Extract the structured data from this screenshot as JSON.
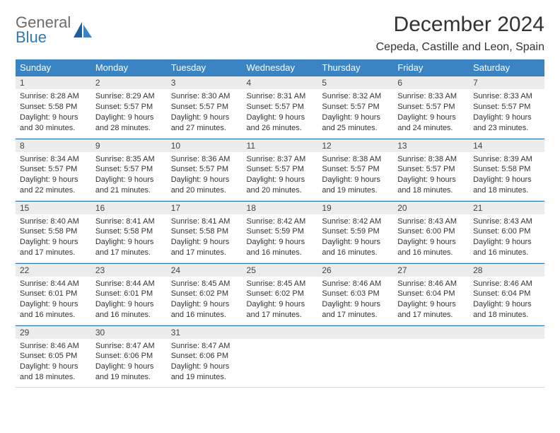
{
  "brand": {
    "part1": "General",
    "part2": "Blue"
  },
  "title": "December 2024",
  "location": "Cepeda, Castille and Leon, Spain",
  "colors": {
    "header_bg": "#3a84c4",
    "daynum_bg": "#ececec",
    "accent": "#2f79b9",
    "text": "#333333"
  },
  "weekdays": [
    "Sunday",
    "Monday",
    "Tuesday",
    "Wednesday",
    "Thursday",
    "Friday",
    "Saturday"
  ],
  "days": [
    {
      "n": 1,
      "sr": "8:28 AM",
      "ss": "5:58 PM",
      "dl": "9 hours and 30 minutes."
    },
    {
      "n": 2,
      "sr": "8:29 AM",
      "ss": "5:57 PM",
      "dl": "9 hours and 28 minutes."
    },
    {
      "n": 3,
      "sr": "8:30 AM",
      "ss": "5:57 PM",
      "dl": "9 hours and 27 minutes."
    },
    {
      "n": 4,
      "sr": "8:31 AM",
      "ss": "5:57 PM",
      "dl": "9 hours and 26 minutes."
    },
    {
      "n": 5,
      "sr": "8:32 AM",
      "ss": "5:57 PM",
      "dl": "9 hours and 25 minutes."
    },
    {
      "n": 6,
      "sr": "8:33 AM",
      "ss": "5:57 PM",
      "dl": "9 hours and 24 minutes."
    },
    {
      "n": 7,
      "sr": "8:33 AM",
      "ss": "5:57 PM",
      "dl": "9 hours and 23 minutes."
    },
    {
      "n": 8,
      "sr": "8:34 AM",
      "ss": "5:57 PM",
      "dl": "9 hours and 22 minutes."
    },
    {
      "n": 9,
      "sr": "8:35 AM",
      "ss": "5:57 PM",
      "dl": "9 hours and 21 minutes."
    },
    {
      "n": 10,
      "sr": "8:36 AM",
      "ss": "5:57 PM",
      "dl": "9 hours and 20 minutes."
    },
    {
      "n": 11,
      "sr": "8:37 AM",
      "ss": "5:57 PM",
      "dl": "9 hours and 20 minutes."
    },
    {
      "n": 12,
      "sr": "8:38 AM",
      "ss": "5:57 PM",
      "dl": "9 hours and 19 minutes."
    },
    {
      "n": 13,
      "sr": "8:38 AM",
      "ss": "5:57 PM",
      "dl": "9 hours and 18 minutes."
    },
    {
      "n": 14,
      "sr": "8:39 AM",
      "ss": "5:58 PM",
      "dl": "9 hours and 18 minutes."
    },
    {
      "n": 15,
      "sr": "8:40 AM",
      "ss": "5:58 PM",
      "dl": "9 hours and 17 minutes."
    },
    {
      "n": 16,
      "sr": "8:41 AM",
      "ss": "5:58 PM",
      "dl": "9 hours and 17 minutes."
    },
    {
      "n": 17,
      "sr": "8:41 AM",
      "ss": "5:58 PM",
      "dl": "9 hours and 17 minutes."
    },
    {
      "n": 18,
      "sr": "8:42 AM",
      "ss": "5:59 PM",
      "dl": "9 hours and 16 minutes."
    },
    {
      "n": 19,
      "sr": "8:42 AM",
      "ss": "5:59 PM",
      "dl": "9 hours and 16 minutes."
    },
    {
      "n": 20,
      "sr": "8:43 AM",
      "ss": "6:00 PM",
      "dl": "9 hours and 16 minutes."
    },
    {
      "n": 21,
      "sr": "8:43 AM",
      "ss": "6:00 PM",
      "dl": "9 hours and 16 minutes."
    },
    {
      "n": 22,
      "sr": "8:44 AM",
      "ss": "6:01 PM",
      "dl": "9 hours and 16 minutes."
    },
    {
      "n": 23,
      "sr": "8:44 AM",
      "ss": "6:01 PM",
      "dl": "9 hours and 16 minutes."
    },
    {
      "n": 24,
      "sr": "8:45 AM",
      "ss": "6:02 PM",
      "dl": "9 hours and 16 minutes."
    },
    {
      "n": 25,
      "sr": "8:45 AM",
      "ss": "6:02 PM",
      "dl": "9 hours and 17 minutes."
    },
    {
      "n": 26,
      "sr": "8:46 AM",
      "ss": "6:03 PM",
      "dl": "9 hours and 17 minutes."
    },
    {
      "n": 27,
      "sr": "8:46 AM",
      "ss": "6:04 PM",
      "dl": "9 hours and 17 minutes."
    },
    {
      "n": 28,
      "sr": "8:46 AM",
      "ss": "6:04 PM",
      "dl": "9 hours and 18 minutes."
    },
    {
      "n": 29,
      "sr": "8:46 AM",
      "ss": "6:05 PM",
      "dl": "9 hours and 18 minutes."
    },
    {
      "n": 30,
      "sr": "8:47 AM",
      "ss": "6:06 PM",
      "dl": "9 hours and 19 minutes."
    },
    {
      "n": 31,
      "sr": "8:47 AM",
      "ss": "6:06 PM",
      "dl": "9 hours and 19 minutes."
    }
  ],
  "labels": {
    "sunrise": "Sunrise:",
    "sunset": "Sunset:",
    "daylight": "Daylight:"
  },
  "layout": {
    "first_weekday_index": 0,
    "rows": 5,
    "cols": 7
  }
}
